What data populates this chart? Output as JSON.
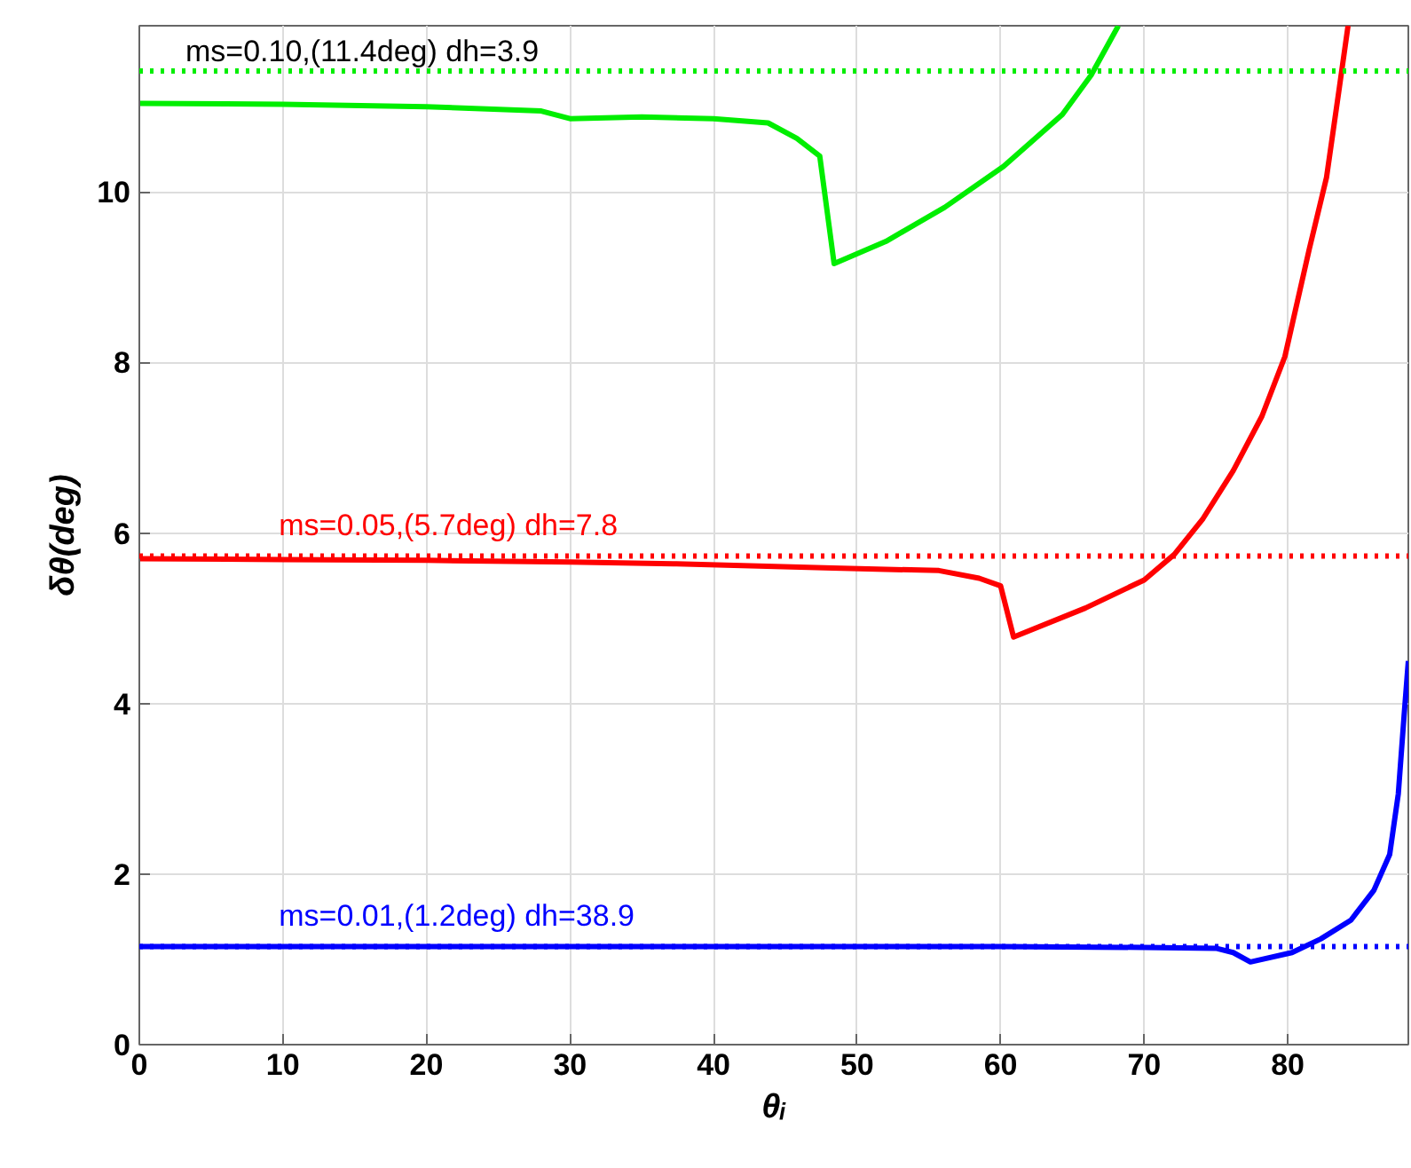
{
  "chart_data": {
    "type": "line",
    "xlabel": "θᵢ",
    "ylabel": "δθ(deg)",
    "xlim": [
      0,
      88.4
    ],
    "ylim": [
      0,
      11.95
    ],
    "xticks": [
      0,
      10,
      20,
      30,
      40,
      50,
      60,
      70,
      80
    ],
    "yticks": [
      0,
      2,
      4,
      6,
      8,
      10
    ],
    "grid": true,
    "line_style": "solid",
    "series": [
      {
        "color": "#00ee00",
        "x": [
          0,
          10,
          20,
          28,
          30,
          35,
          40,
          43.8,
          45.8,
          47.4,
          48.4,
          52.0,
          56.1,
          60.2,
          64.3,
          66.3,
          68.2
        ],
        "values": [
          11.04,
          11.03,
          11.0,
          10.95,
          10.86,
          10.88,
          10.86,
          10.81,
          10.63,
          10.42,
          9.16,
          9.42,
          9.82,
          10.3,
          10.91,
          11.37,
          11.95
        ]
      },
      {
        "color": "#ff0000",
        "x": [
          0,
          10,
          20,
          30,
          37.2,
          48.3,
          55.7,
          58.5,
          60.0,
          60.9,
          65.9,
          70.0,
          72.1,
          74.1,
          76.2,
          78.2,
          79.8,
          81.5,
          82.7,
          83.6,
          84.2
        ],
        "values": [
          5.7,
          5.69,
          5.68,
          5.66,
          5.64,
          5.59,
          5.56,
          5.47,
          5.38,
          4.78,
          5.12,
          5.45,
          5.75,
          6.17,
          6.73,
          7.37,
          8.07,
          9.33,
          10.17,
          11.23,
          11.95
        ]
      },
      {
        "color": "#0000ff",
        "x": [
          0,
          20,
          40,
          60,
          70,
          75,
          76.2,
          77.4,
          80.3,
          82.3,
          84.4,
          86.0,
          87.1,
          87.7,
          88.1,
          88.4
        ],
        "values": [
          1.15,
          1.15,
          1.15,
          1.15,
          1.14,
          1.13,
          1.08,
          0.97,
          1.08,
          1.24,
          1.46,
          1.81,
          2.23,
          2.94,
          3.85,
          4.5
        ]
      }
    ],
    "ref_lines": [
      {
        "axis": "y",
        "value": 11.42,
        "color": "#00ee00",
        "line_style": "dotted"
      },
      {
        "axis": "y",
        "value": 5.73,
        "color": "#ff0000",
        "line_style": "dotted",
        "label": "ms=0.05,(5.7deg) dh=7.8"
      },
      {
        "axis": "y",
        "value": 1.15,
        "color": "#0000ff",
        "line_style": "dotted",
        "label": "ms=0.01,(1.2deg) dh=38.9"
      }
    ],
    "annotations": [
      "ms=0.10,(11.4deg) dh=3.9"
    ]
  }
}
